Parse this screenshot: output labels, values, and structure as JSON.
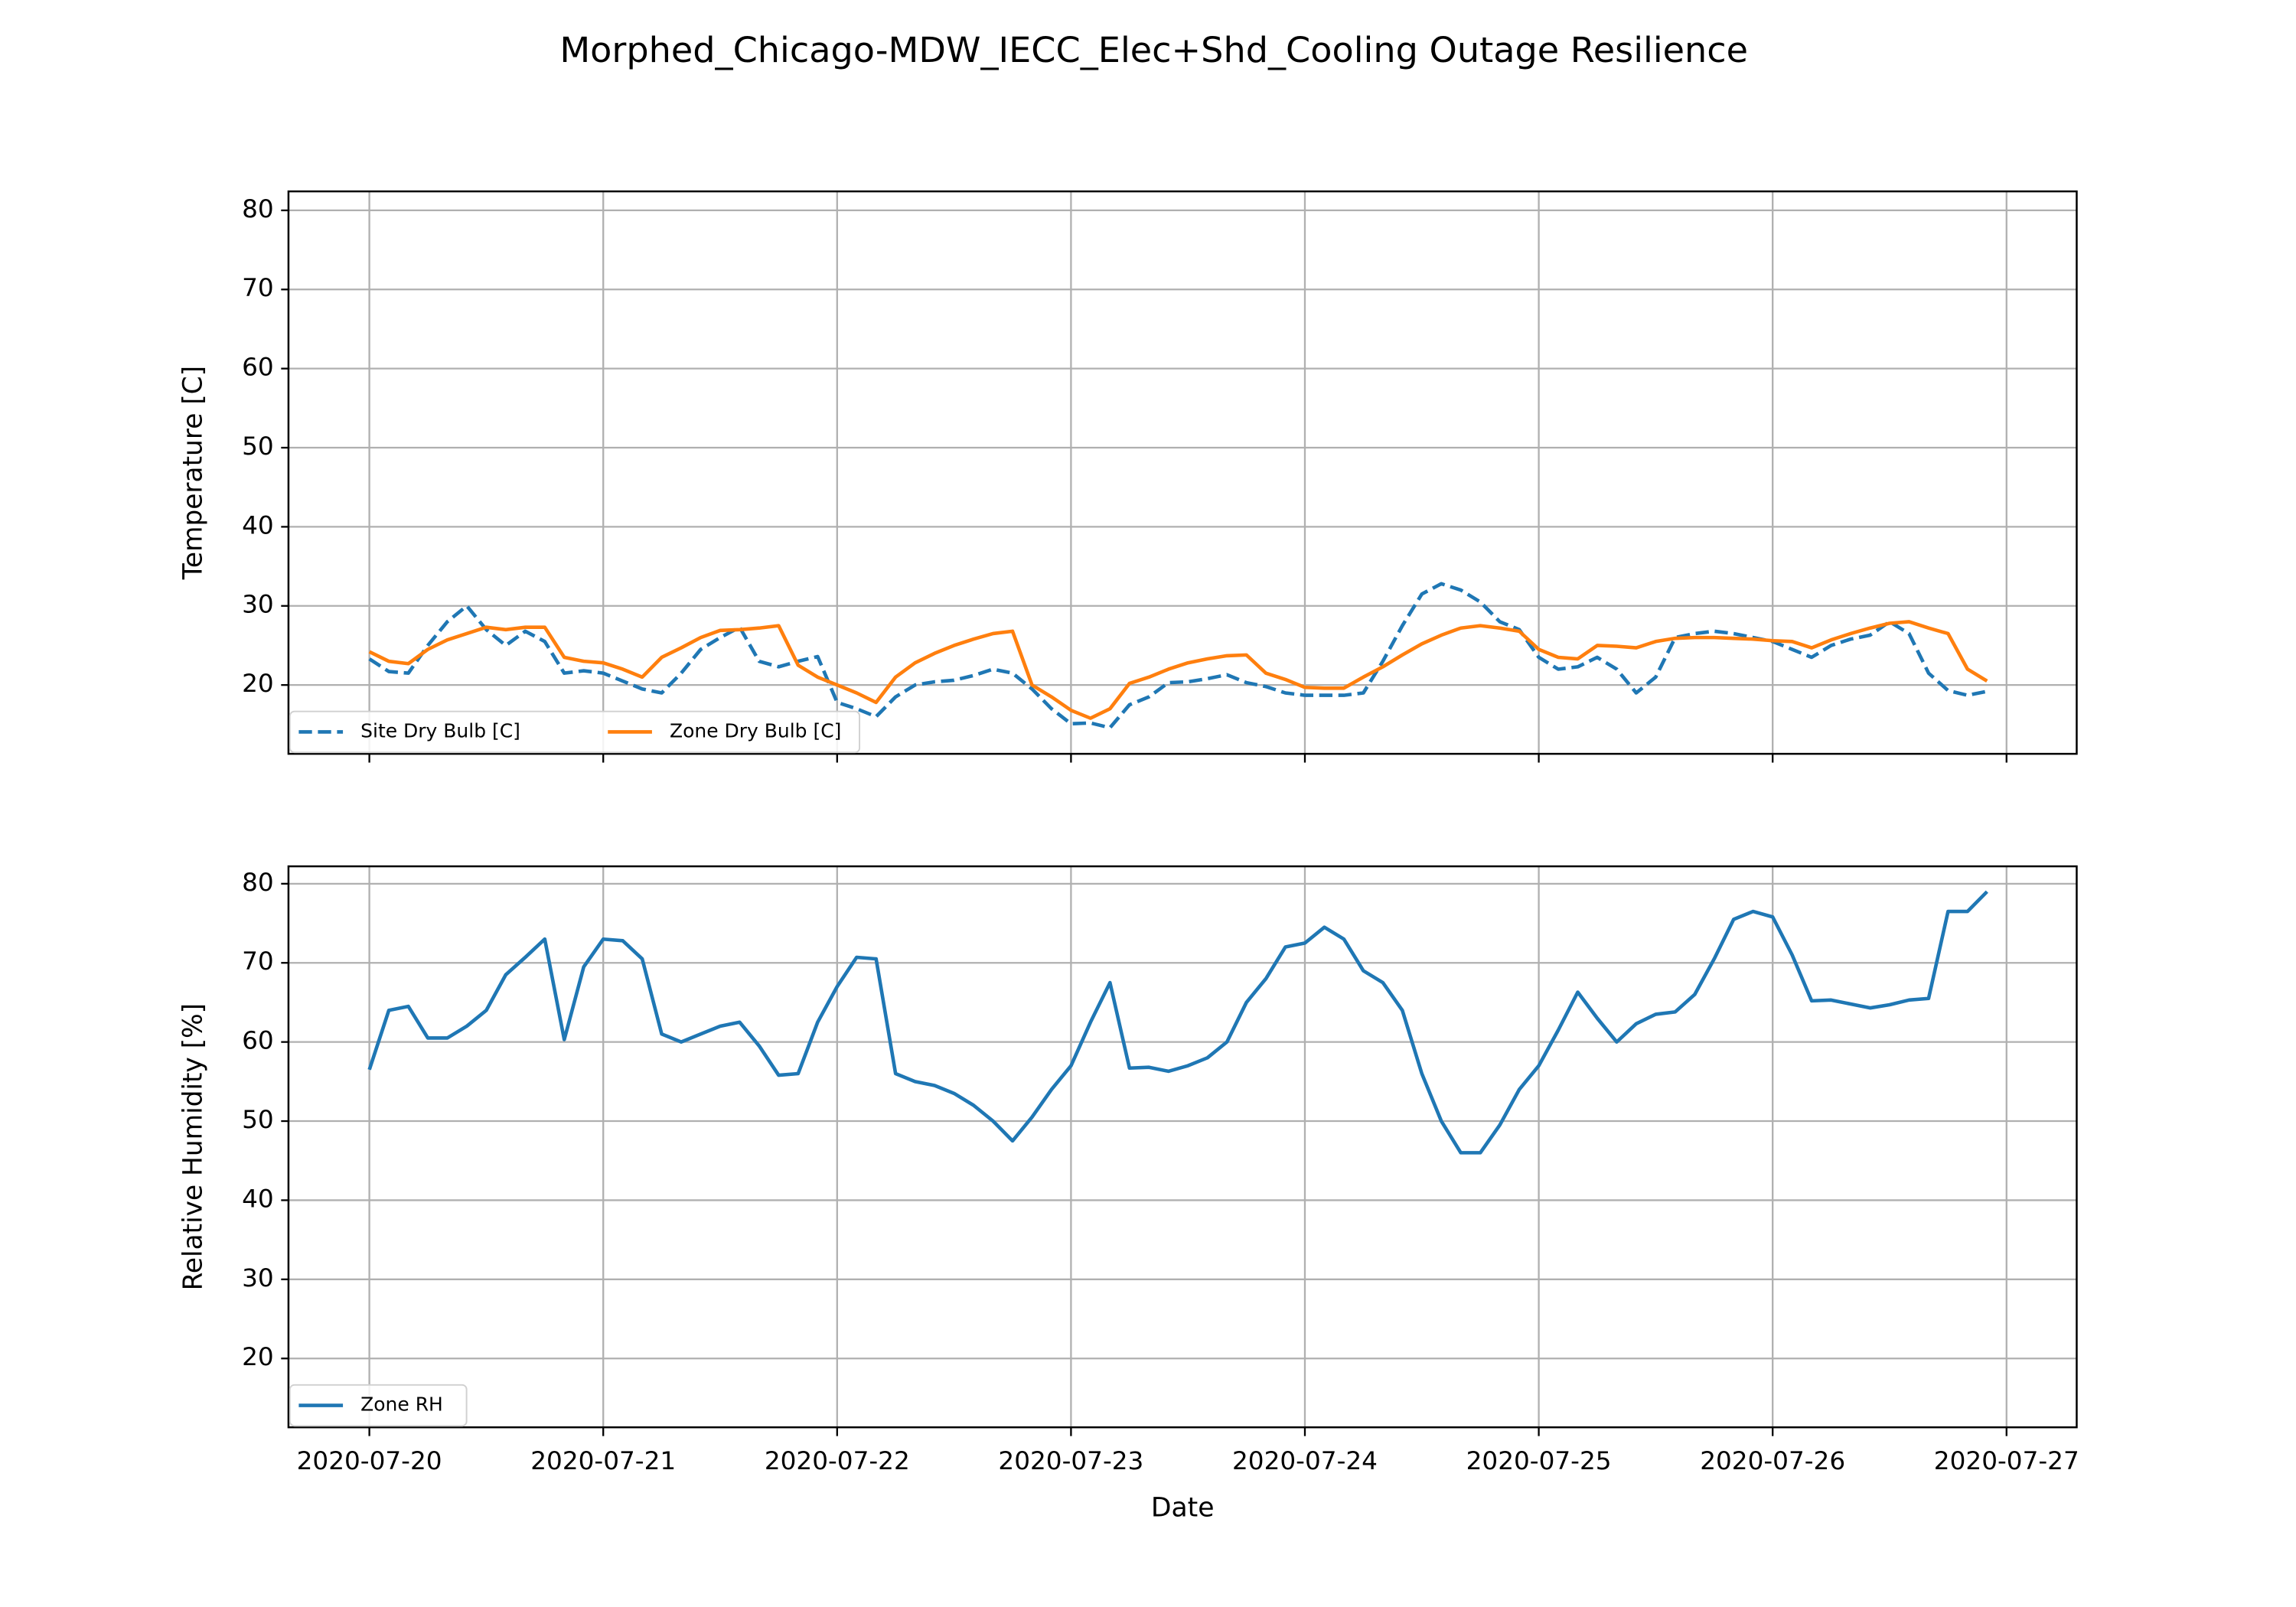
{
  "title": "Morphed_Chicago-MDW_IECC_Elec+Shd_Cooling Outage Resilience",
  "chart_data": [
    {
      "type": "line",
      "ylabel": "Temperature [C]",
      "show_xtick_labels": false,
      "legend": "lower left",
      "legend_columns": 2,
      "grid": true,
      "xlim": [
        -8.3,
        175.2
      ],
      "xticks": [
        {
          "value": 0,
          "label": "2020-07-20"
        },
        {
          "value": 24,
          "label": "2020-07-21"
        },
        {
          "value": 48,
          "label": "2020-07-22"
        },
        {
          "value": 72,
          "label": "2020-07-23"
        },
        {
          "value": 96,
          "label": "2020-07-24"
        },
        {
          "value": 120,
          "label": "2020-07-25"
        },
        {
          "value": 144,
          "label": "2020-07-26"
        },
        {
          "value": 168,
          "label": "2020-07-27"
        }
      ],
      "ylim": [
        11.3,
        82.4
      ],
      "yticks": [
        20,
        30,
        40,
        50,
        60,
        70,
        80
      ],
      "x": [
        0,
        2,
        4,
        6,
        8,
        10,
        12,
        14,
        16,
        18,
        20,
        22,
        24,
        26,
        28,
        30,
        32,
        34,
        36,
        38,
        40,
        42,
        44,
        46,
        48,
        50,
        52,
        54,
        56,
        58,
        60,
        62,
        64,
        66,
        68,
        70,
        72,
        74,
        76,
        78,
        80,
        82,
        84,
        86,
        88,
        90,
        92,
        94,
        96,
        98,
        100,
        102,
        104,
        106,
        108,
        110,
        112,
        114,
        116,
        118,
        120,
        122,
        124,
        126,
        128,
        130,
        132,
        134,
        136,
        138,
        140,
        142,
        144,
        146,
        148,
        150,
        152,
        154,
        156,
        158,
        160,
        162,
        164,
        166
      ],
      "series": [
        {
          "name": "Site Dry Bulb [C]",
          "color": "#1f77b4",
          "linestyle": "dashed",
          "values": [
            23.3,
            21.7,
            21.5,
            25,
            28,
            30,
            27,
            25,
            26.8,
            25.5,
            21.5,
            21.8,
            21.5,
            20.5,
            19.5,
            19,
            21.5,
            24.5,
            26,
            27.3,
            23,
            22.3,
            23,
            23.6,
            17.8,
            17,
            16,
            18.5,
            20,
            20.4,
            20.6,
            21.2,
            22,
            21.5,
            19.5,
            17,
            15.1,
            15.2,
            14.6,
            17.5,
            18.5,
            20.3,
            20.4,
            20.8,
            21.3,
            20.3,
            19.8,
            19,
            18.7,
            18.7,
            18.7,
            19,
            23,
            27.5,
            31.5,
            32.8,
            32,
            30.5,
            28,
            27,
            23.5,
            22,
            22.3,
            23.5,
            22,
            19,
            21,
            26,
            26.5,
            26.8,
            26.5,
            26,
            25.5,
            24.5,
            23.5,
            25,
            25.8,
            26.3,
            28,
            26.5,
            21.5,
            19.3,
            18.7,
            19.2
          ]
        },
        {
          "name": "Zone Dry Bulb [C]",
          "color": "#ff7f0e",
          "linestyle": "solid",
          "values": [
            24.2,
            23,
            22.7,
            24.5,
            25.7,
            26.5,
            27.3,
            27,
            27.3,
            27.3,
            23.5,
            23,
            22.8,
            22,
            21,
            23.5,
            24.7,
            26,
            26.9,
            27,
            27.2,
            27.5,
            22.5,
            21,
            20,
            19,
            17.8,
            21,
            22.8,
            24,
            25,
            25.8,
            26.5,
            26.8,
            20,
            18.5,
            16.8,
            15.8,
            17,
            20.2,
            21,
            22,
            22.8,
            23.3,
            23.7,
            23.8,
            21.5,
            20.7,
            19.7,
            19.6,
            19.6,
            21,
            22.3,
            23.8,
            25.2,
            26.3,
            27.2,
            27.5,
            27.2,
            26.8,
            24.5,
            23.5,
            23.3,
            25,
            24.9,
            24.7,
            25.5,
            25.9,
            26,
            26,
            25.9,
            25.8,
            25.6,
            25.5,
            24.7,
            25.7,
            26.5,
            27.2,
            27.8,
            28,
            27.2,
            26.5,
            22,
            20.5
          ]
        }
      ]
    },
    {
      "type": "line",
      "ylabel": "Relative Humidity [%]",
      "xlabel": "Date",
      "show_xtick_labels": true,
      "legend": "lower left",
      "legend_columns": 1,
      "grid": true,
      "xlim": [
        -8.3,
        175.2
      ],
      "xticks": [
        {
          "value": 0,
          "label": "2020-07-20"
        },
        {
          "value": 24,
          "label": "2020-07-21"
        },
        {
          "value": 48,
          "label": "2020-07-22"
        },
        {
          "value": 72,
          "label": "2020-07-23"
        },
        {
          "value": 96,
          "label": "2020-07-24"
        },
        {
          "value": 120,
          "label": "2020-07-25"
        },
        {
          "value": 144,
          "label": "2020-07-26"
        },
        {
          "value": 168,
          "label": "2020-07-27"
        }
      ],
      "ylim": [
        11.3,
        82.2
      ],
      "yticks": [
        20,
        30,
        40,
        50,
        60,
        70,
        80
      ],
      "x": [
        0,
        2,
        4,
        6,
        8,
        10,
        12,
        14,
        16,
        18,
        20,
        22,
        24,
        26,
        28,
        30,
        32,
        34,
        36,
        38,
        40,
        42,
        44,
        46,
        48,
        50,
        52,
        54,
        56,
        58,
        60,
        62,
        64,
        66,
        68,
        70,
        72,
        74,
        76,
        78,
        80,
        82,
        84,
        86,
        88,
        90,
        92,
        94,
        96,
        98,
        100,
        102,
        104,
        106,
        108,
        110,
        112,
        114,
        116,
        118,
        120,
        122,
        124,
        126,
        128,
        130,
        132,
        134,
        136,
        138,
        140,
        142,
        144,
        146,
        148,
        150,
        152,
        154,
        156,
        158,
        160,
        162,
        164,
        166
      ],
      "series": [
        {
          "name": "Zone RH",
          "color": "#1f77b4",
          "linestyle": "solid",
          "values": [
            56.5,
            64,
            64.5,
            60.5,
            60.5,
            62,
            64,
            68.5,
            70.7,
            73,
            60.3,
            69.5,
            73,
            72.8,
            70.5,
            61,
            60,
            61,
            62,
            62.5,
            59.5,
            55.8,
            56,
            62.5,
            67,
            70.7,
            70.5,
            56,
            55,
            54.5,
            53.5,
            52,
            50,
            47.5,
            50.5,
            54,
            57,
            62.5,
            67.5,
            56.7,
            56.8,
            56.3,
            57,
            58,
            60,
            65,
            68,
            72,
            72.5,
            74.5,
            73,
            69,
            67.5,
            64,
            56,
            50,
            46,
            46,
            49.5,
            54,
            57,
            61.5,
            66.3,
            63,
            60,
            62.3,
            63.5,
            63.8,
            66,
            70.5,
            75.5,
            76.5,
            75.8,
            71,
            65.2,
            65.3,
            64.8,
            64.3,
            64.7,
            65.3,
            65.5,
            76.5,
            76.5,
            79
          ]
        }
      ]
    }
  ]
}
